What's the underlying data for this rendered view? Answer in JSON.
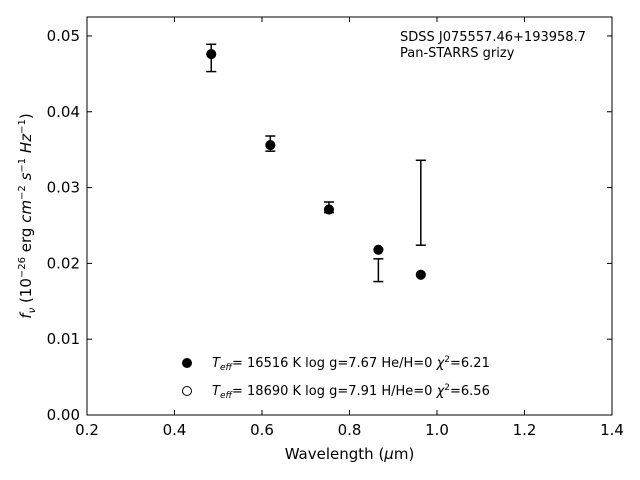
{
  "chart_data": {
    "type": "scatter",
    "xlabel": "Wavelength (μm)",
    "ylabel": "fν (10⁻²⁶ erg cm⁻² s⁻¹ Hz⁻¹)",
    "xlim": [
      0.2,
      1.4
    ],
    "ylim": [
      0.0,
      0.0525
    ],
    "xticks": [
      "0.2",
      "0.4",
      "0.6",
      "0.8",
      "1.0",
      "1.2",
      "1.4"
    ],
    "yticks": [
      "0.00",
      "0.01",
      "0.02",
      "0.03",
      "0.04",
      "0.05"
    ],
    "annotation": [
      "SDSS J075557.46+193958.7",
      "Pan-STARRS grizy"
    ],
    "legend_position": "lower-center",
    "observed": {
      "x": [
        0.484,
        0.619,
        0.753,
        0.866,
        0.963
      ],
      "y": [
        0.0471,
        0.0358,
        0.0274,
        0.0191,
        0.028
      ],
      "yerr": [
        0.0018,
        0.001,
        0.0007,
        0.0015,
        0.0056
      ]
    },
    "series": [
      {
        "name": "Teff= 16516 K  log g=7.67  He/H=0  χ²=6.21",
        "marker": "filled-circle",
        "x": [
          0.484,
          0.619,
          0.753,
          0.866,
          0.963
        ],
        "y": [
          0.0476,
          0.0356,
          0.0271,
          0.0218,
          0.0185
        ]
      },
      {
        "name": "Teff= 18690 K  log g=7.91  H/He=0  χ²=6.56",
        "marker": "open-circle",
        "x": [
          0.484,
          0.619,
          0.753,
          0.866,
          0.963
        ],
        "y": [
          0.0476,
          0.0356,
          0.0271,
          0.0218,
          0.0185
        ]
      }
    ]
  }
}
